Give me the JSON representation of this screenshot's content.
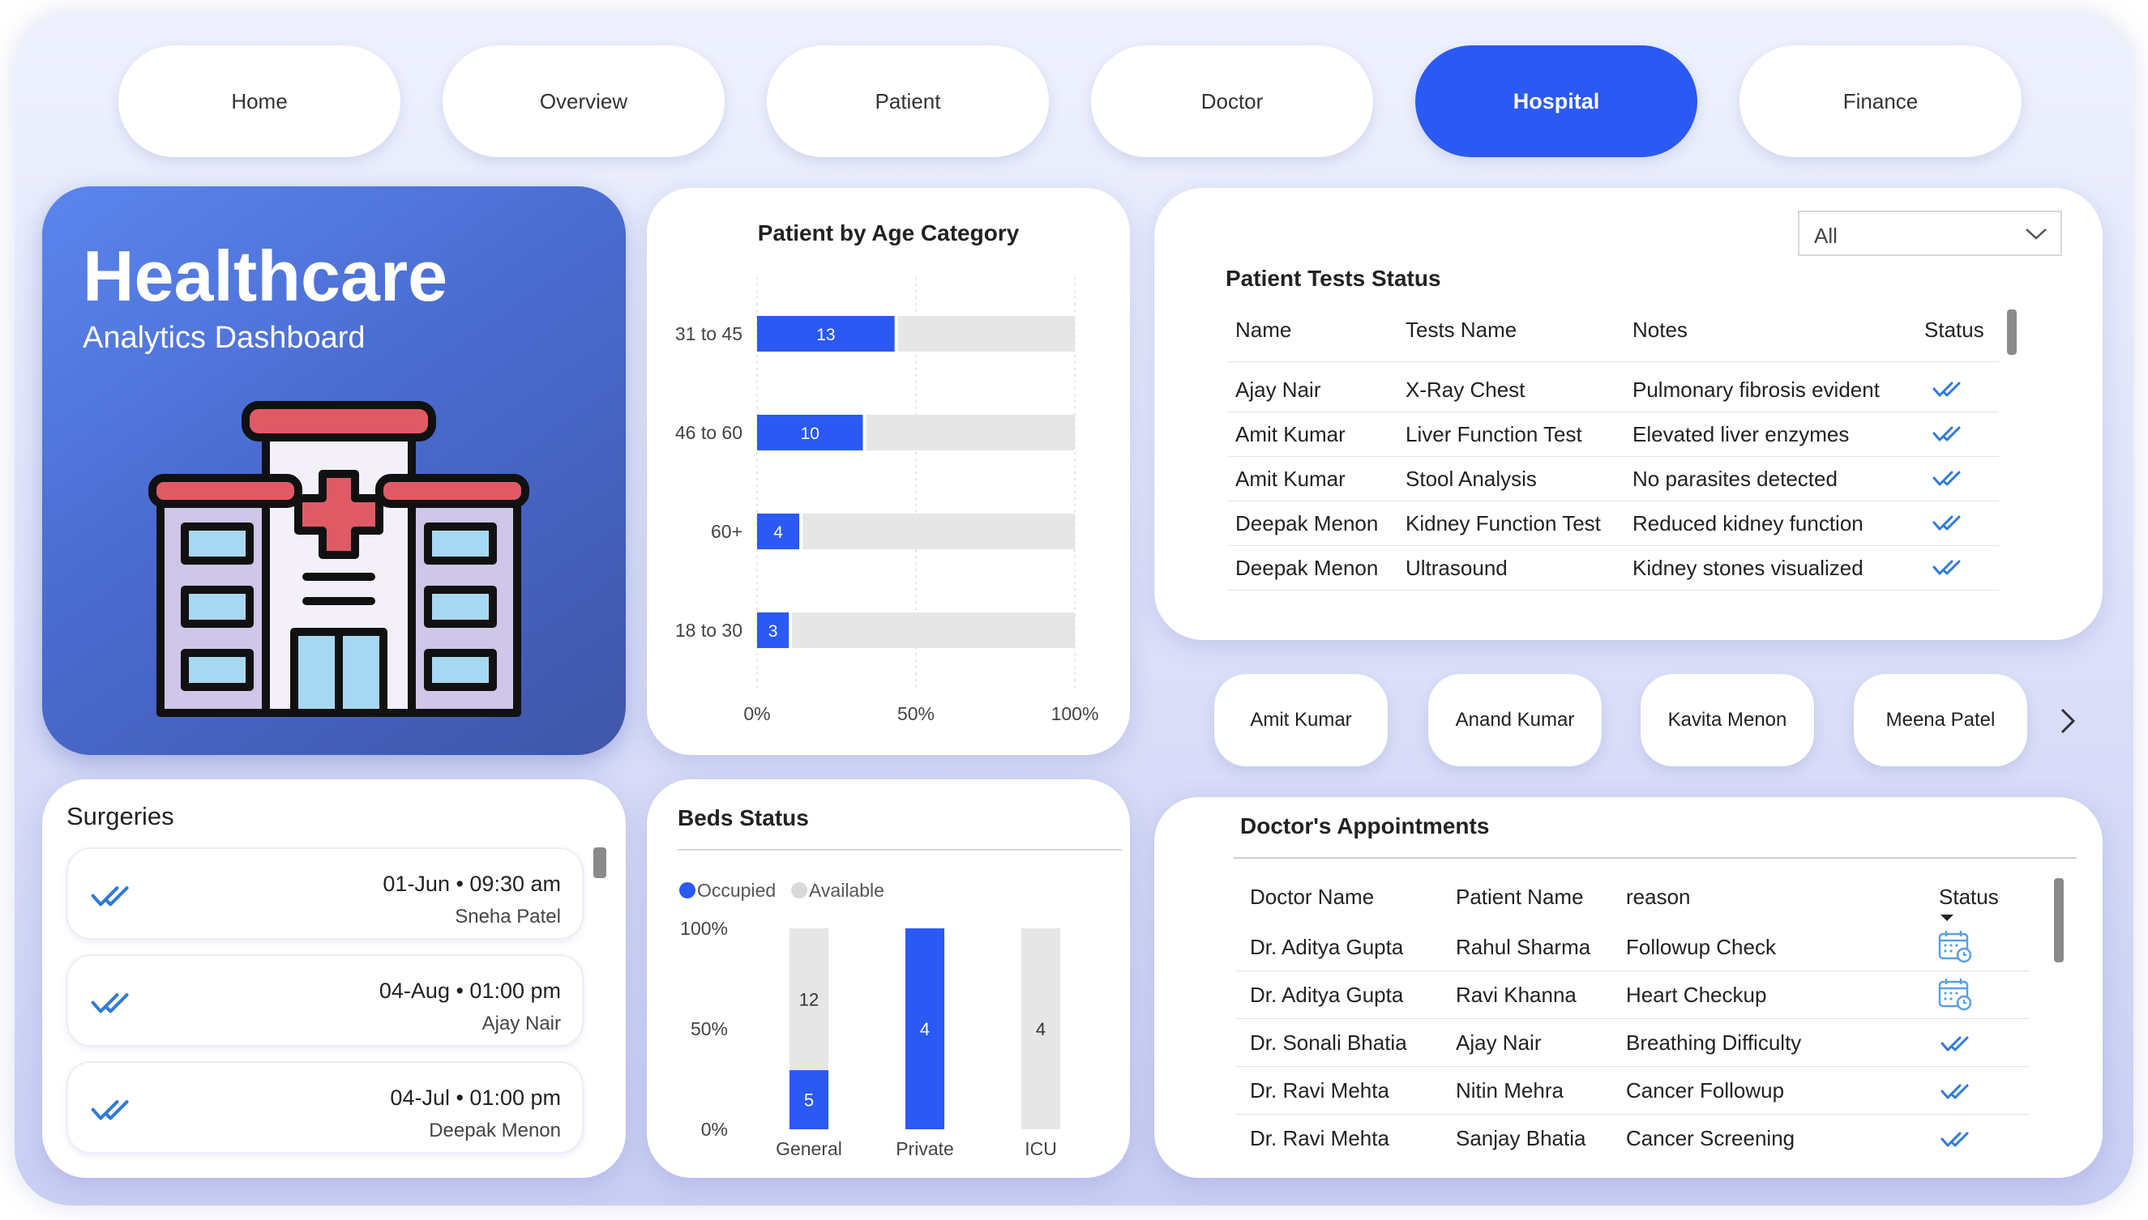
{
  "nav": [
    "Home",
    "Overview",
    "Patient",
    "Doctor",
    "Hospital",
    "Finance"
  ],
  "nav_active": "Hospital",
  "hero": {
    "title": "Healthcare",
    "subtitle": "Analytics Dashboard"
  },
  "age_chart": {
    "title": "Patient by Age Category",
    "x_ticks": [
      "0%",
      "50%",
      "100%"
    ]
  },
  "tests": {
    "filter_value": "All",
    "title": "Patient Tests Status",
    "headers": [
      "Name",
      "Tests Name",
      "Notes",
      "Status"
    ],
    "rows": [
      [
        "Ajay Nair",
        "X-Ray Chest",
        "Pulmonary fibrosis evident"
      ],
      [
        "Amit Kumar",
        "Liver Function Test",
        "Elevated liver enzymes"
      ],
      [
        "Amit Kumar",
        "Stool Analysis",
        "No parasites detected"
      ],
      [
        "Deepak Menon",
        "Kidney Function Test",
        "Reduced kidney function"
      ],
      [
        "Deepak Menon",
        "Ultrasound",
        "Kidney stones visualized"
      ]
    ]
  },
  "doctor_pills": [
    "Amit Kumar",
    "Anand Kumar",
    "Kavita Menon",
    "Meena Patel"
  ],
  "surgeries": {
    "title": "Surgeries",
    "items": [
      {
        "date": "01-Jun • 09:30 am",
        "name": "Sneha Patel"
      },
      {
        "date": "04-Aug • 01:00 pm",
        "name": "Ajay Nair"
      },
      {
        "date": "04-Jul • 01:00 pm",
        "name": "Deepak Menon"
      }
    ]
  },
  "beds": {
    "title": "Beds Status",
    "legend": [
      "Occupied",
      "Available"
    ],
    "y_ticks": [
      "100%",
      "50%",
      "0%"
    ]
  },
  "appointments": {
    "title": "Doctor's Appointments",
    "headers": [
      "Doctor Name",
      "Patient Name",
      "reason",
      "Status"
    ],
    "rows": [
      {
        "doctor": "Dr. Aditya Gupta",
        "patient": "Rahul Sharma",
        "reason": "Followup Check",
        "status": "calendar"
      },
      {
        "doctor": "Dr. Aditya Gupta",
        "patient": "Ravi Khanna",
        "reason": "Heart Checkup",
        "status": "calendar"
      },
      {
        "doctor": "Dr. Sonali Bhatia",
        "patient": "Ajay Nair",
        "reason": "Breathing Difficulty",
        "status": "check"
      },
      {
        "doctor": "Dr. Ravi Mehta",
        "patient": "Nitin Mehra",
        "reason": "Cancer Followup",
        "status": "check"
      },
      {
        "doctor": "Dr. Ravi Mehta",
        "patient": "Sanjay Bhatia",
        "reason": "Cancer Screening",
        "status": "check"
      }
    ]
  },
  "colors": {
    "accent": "#2b59f3",
    "bar_track": "#e6e6e6",
    "check": "#2f7ad8"
  },
  "chart_data": [
    {
      "type": "bar",
      "orientation": "horizontal",
      "title": "Patient by Age Category",
      "categories": [
        "31 to 45",
        "46 to 60",
        "60+",
        "18 to 30"
      ],
      "values": [
        13,
        10,
        4,
        3
      ],
      "share_of_total": [
        0.433,
        0.333,
        0.133,
        0.1
      ],
      "xlim": [
        0,
        1
      ],
      "x_ticks": [
        "0%",
        "50%",
        "100%"
      ]
    },
    {
      "type": "bar",
      "stacked": "percent",
      "title": "Beds Status",
      "categories": [
        "General",
        "Private",
        "ICU"
      ],
      "series": [
        {
          "name": "Occupied",
          "values": [
            5,
            4,
            0
          ],
          "color": "#2b59f3"
        },
        {
          "name": "Available",
          "values": [
            12,
            0,
            4
          ],
          "color": "#e6e6e6"
        }
      ],
      "ylim": [
        0,
        1
      ],
      "y_ticks": [
        "100%",
        "50%",
        "0%"
      ],
      "legend": "top-left"
    }
  ]
}
